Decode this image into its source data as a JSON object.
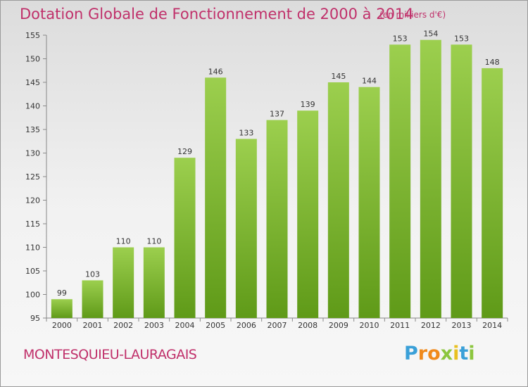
{
  "chart_data": {
    "type": "bar",
    "title": "Dotation Globale de Fonctionnement de 2000 à 2014",
    "subtitle": "(en milliers d'€)",
    "categories": [
      "2000",
      "2001",
      "2002",
      "2003",
      "2004",
      "2005",
      "2006",
      "2007",
      "2008",
      "2009",
      "2010",
      "2011",
      "2012",
      "2013",
      "2014"
    ],
    "values": [
      99,
      103,
      110,
      110,
      129,
      146,
      133,
      137,
      139,
      145,
      144,
      153,
      154,
      153,
      148
    ],
    "ylim": [
      95,
      155
    ],
    "yticks": [
      95,
      100,
      105,
      110,
      115,
      120,
      125,
      130,
      135,
      140,
      145,
      150,
      155
    ],
    "grid": false,
    "bar_color_top": "#9ccf4e",
    "bar_color_bottom": "#5f9a18"
  },
  "commune": "MONTESQUIEU-LAURAGAIS",
  "logo": {
    "letters": [
      "P",
      "r",
      "o",
      "x",
      "i",
      "t",
      "i"
    ],
    "colors": [
      "#3aa0d8",
      "#f08a1c",
      "#f08a1c",
      "#8cc63f",
      "#e8c020",
      "#3aa0d8",
      "#8cc63f"
    ]
  }
}
